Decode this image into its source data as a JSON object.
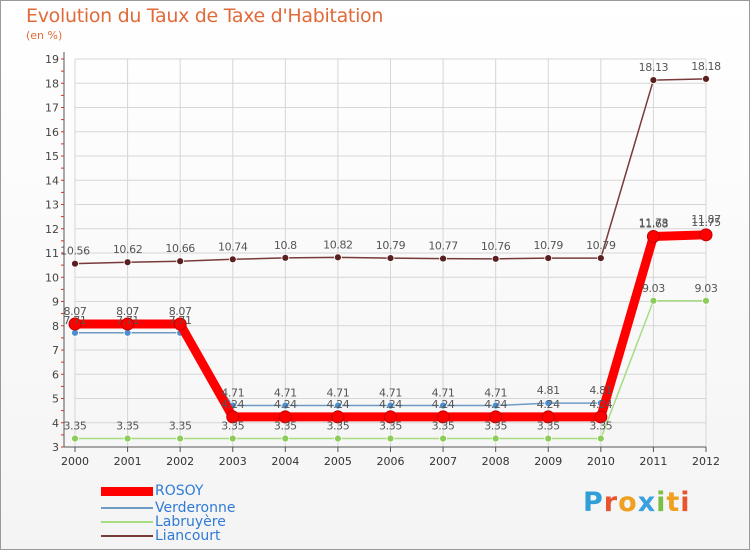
{
  "header": {
    "title": "Evolution du Taux de Taxe d'Habitation",
    "subtitle": "(en %)"
  },
  "brand": {
    "letters": [
      "P",
      "r",
      "o",
      "x",
      "i",
      "t",
      "i"
    ],
    "colors": [
      "#2f9fd8",
      "#e8542f",
      "#f0a020",
      "#3aa0e0",
      "#7ac143",
      "#f0a020",
      "#e8542f"
    ]
  },
  "chart_data": {
    "type": "line",
    "title": "Evolution du Taux de Taxe d'Habitation",
    "ylabel": "(en %)",
    "xlabel": "",
    "ylim": [
      3,
      19
    ],
    "yticks": [
      "3",
      "4",
      "5",
      "6",
      "7",
      "8",
      "9",
      "10",
      "11",
      "12",
      "13",
      "14",
      "15",
      "16",
      "17",
      "18",
      "19"
    ],
    "categories": [
      "2000",
      "2001",
      "2002",
      "2003",
      "2004",
      "2005",
      "2006",
      "2007",
      "2008",
      "2009",
      "2010",
      "2011",
      "2012"
    ],
    "grid": true,
    "legend_position": "bottom-left",
    "series": [
      {
        "name": "ROSOY",
        "color": "#ff0000",
        "values": [
          8.07,
          8.07,
          8.07,
          4.24,
          4.24,
          4.24,
          4.24,
          4.24,
          4.24,
          4.24,
          4.24,
          11.68,
          11.75
        ],
        "labels": [
          "8.07",
          "8.07",
          "8.07",
          "4.24",
          "4.24",
          "4.24",
          "4.24",
          "4.24",
          "4.24",
          "4.24",
          "4.24",
          "11.68",
          "11.75"
        ]
      },
      {
        "name": "Verderonne",
        "color": "#6e9bc5",
        "values": [
          7.71,
          7.71,
          7.71,
          4.71,
          4.71,
          4.71,
          4.71,
          4.71,
          4.71,
          4.81,
          4.81,
          11.73,
          11.87
        ],
        "labels": [
          "7.71",
          "7.71",
          "7.71",
          "4.71",
          "4.71",
          "4.71",
          "4.71",
          "4.71",
          "4.71",
          "4.81",
          "4.81",
          "11.73",
          "11.87"
        ]
      },
      {
        "name": "Labruyère",
        "color": "#a6dc82",
        "values": [
          3.35,
          3.35,
          3.35,
          3.35,
          3.35,
          3.35,
          3.35,
          3.35,
          3.35,
          3.35,
          3.35,
          9.03,
          9.03
        ],
        "labels": [
          "3.35",
          "3.35",
          "3.35",
          "3.35",
          "3.35",
          "3.35",
          "3.35",
          "3.35",
          "3.35",
          "3.35",
          "3.35",
          "9.03",
          "9.03"
        ]
      },
      {
        "name": "Liancourt",
        "color": "#7a3a3a",
        "values": [
          10.56,
          10.62,
          10.66,
          10.74,
          10.8,
          10.82,
          10.79,
          10.77,
          10.76,
          10.79,
          10.79,
          18.13,
          18.18
        ],
        "labels": [
          "10.56",
          "10.62",
          "10.66",
          "10.74",
          "10.8",
          "10.82",
          "10.79",
          "10.77",
          "10.76",
          "10.79",
          "10.79",
          "18.13",
          "18.18"
        ]
      }
    ]
  }
}
